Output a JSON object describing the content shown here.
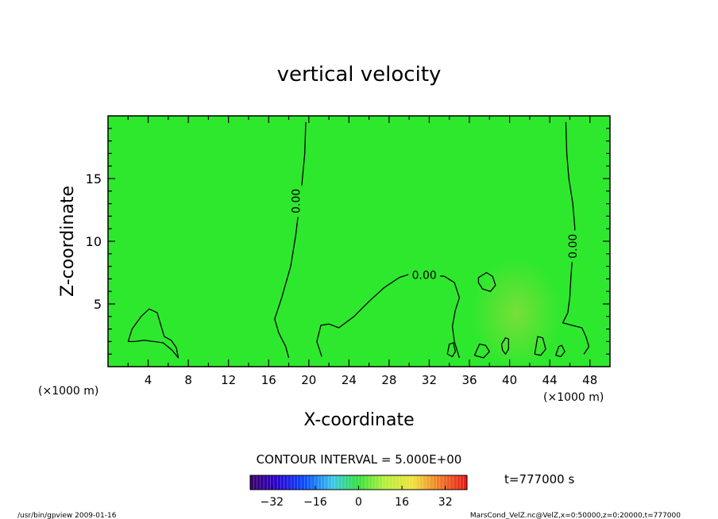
{
  "chart_data": {
    "type": "contour",
    "title": "vertical velocity",
    "xlabel": "X-coordinate",
    "ylabel": "Z-coordinate",
    "x_unit_left": "(×1000 m)",
    "x_unit_right": "(×1000 m)",
    "xlim": [
      0,
      50
    ],
    "ylim": [
      0,
      20
    ],
    "x_ticks": [
      4,
      8,
      12,
      16,
      20,
      24,
      28,
      32,
      36,
      40,
      44,
      48
    ],
    "y_ticks": [
      5,
      10,
      15
    ],
    "contour_interval_text": "CONTOUR INTERVAL = 5.000E+00",
    "contour_label": "0.00",
    "contour_labels": [
      {
        "text": "0.00",
        "x": 18.7,
        "z": 13.2,
        "rotation": -90
      },
      {
        "text": "0.00",
        "x": 31.5,
        "z": 7.3,
        "rotation": 0
      },
      {
        "text": "0.00",
        "x": 46.3,
        "z": 9.6,
        "rotation": -90
      }
    ],
    "contours": [
      {
        "name": "left-zero",
        "points": [
          [
            19.7,
            19.5
          ],
          [
            19.6,
            17
          ],
          [
            19.3,
            14.5
          ],
          [
            19.0,
            12.5
          ],
          [
            18.7,
            10.5
          ],
          [
            18.2,
            8.0
          ],
          [
            17.3,
            5.5
          ],
          [
            16.6,
            3.8
          ],
          [
            17.0,
            2.7
          ],
          [
            17.7,
            1.6
          ],
          [
            18.0,
            0.7
          ]
        ]
      },
      {
        "name": "hump-zero",
        "points": [
          [
            21.3,
            0.8
          ],
          [
            20.8,
            2.0
          ],
          [
            21.2,
            3.3
          ],
          [
            22.0,
            3.4
          ],
          [
            23.0,
            3.1
          ],
          [
            24.5,
            4.0
          ],
          [
            26.0,
            5.2
          ],
          [
            27.5,
            6.3
          ],
          [
            29.0,
            7.1
          ],
          [
            30.5,
            7.5
          ],
          [
            32.0,
            7.3
          ],
          [
            33.5,
            7.2
          ],
          [
            34.5,
            6.7
          ],
          [
            35.0,
            5.5
          ],
          [
            34.6,
            4.5
          ],
          [
            34.3,
            3.2
          ],
          [
            34.5,
            2.0
          ],
          [
            35.0,
            0.7
          ]
        ]
      },
      {
        "name": "right-zero",
        "points": [
          [
            45.6,
            19.5
          ],
          [
            45.7,
            17
          ],
          [
            45.9,
            15
          ],
          [
            46.3,
            13
          ],
          [
            46.5,
            11
          ],
          [
            46.3,
            9.2
          ],
          [
            46.1,
            7.0
          ],
          [
            46.0,
            5.5
          ],
          [
            45.8,
            4.3
          ],
          [
            45.3,
            3.5
          ],
          [
            46.2,
            3.3
          ],
          [
            47.2,
            3.1
          ],
          [
            47.6,
            2.4
          ],
          [
            47.9,
            1.6
          ],
          [
            47.4,
            1.0
          ]
        ]
      },
      {
        "name": "left-lobe",
        "points": [
          [
            2.0,
            2.0
          ],
          [
            2.4,
            3.0
          ],
          [
            3.3,
            4.0
          ],
          [
            4.1,
            4.6
          ],
          [
            4.9,
            4.3
          ],
          [
            5.3,
            3.2
          ],
          [
            5.6,
            2.4
          ],
          [
            6.3,
            2.1
          ],
          [
            6.8,
            1.5
          ],
          [
            7.0,
            0.7
          ],
          [
            6.4,
            1.3
          ],
          [
            5.5,
            1.9
          ],
          [
            4.6,
            2.0
          ],
          [
            3.6,
            2.1
          ],
          [
            2.6,
            2.0
          ],
          [
            2.0,
            2.0
          ]
        ]
      },
      {
        "name": "small-loop",
        "points": [
          [
            36.9,
            7.1
          ],
          [
            37.7,
            7.5
          ],
          [
            38.3,
            7.2
          ],
          [
            38.6,
            6.5
          ],
          [
            38.1,
            6.0
          ],
          [
            37.3,
            6.2
          ],
          [
            36.9,
            6.7
          ],
          [
            36.9,
            7.1
          ]
        ]
      },
      {
        "name": "loop-40",
        "points": [
          [
            39.2,
            1.8
          ],
          [
            39.6,
            2.3
          ],
          [
            39.9,
            2.2
          ],
          [
            39.9,
            1.4
          ],
          [
            39.6,
            1.0
          ],
          [
            39.3,
            1.3
          ],
          [
            39.2,
            1.8
          ]
        ]
      },
      {
        "name": "loop-35",
        "points": [
          [
            33.8,
            1.0
          ],
          [
            34.0,
            1.8
          ],
          [
            34.4,
            1.9
          ],
          [
            34.6,
            1.2
          ],
          [
            34.3,
            0.8
          ],
          [
            33.8,
            1.0
          ]
        ]
      },
      {
        "name": "loop-43",
        "points": [
          [
            42.5,
            1.0
          ],
          [
            42.8,
            2.4
          ],
          [
            43.3,
            2.3
          ],
          [
            43.6,
            1.4
          ],
          [
            43.1,
            0.9
          ],
          [
            42.5,
            1.0
          ]
        ]
      },
      {
        "name": "loop-45",
        "points": [
          [
            44.6,
            0.9
          ],
          [
            44.9,
            1.6
          ],
          [
            45.2,
            1.7
          ],
          [
            45.5,
            1.2
          ],
          [
            45.1,
            0.8
          ],
          [
            44.6,
            0.9
          ]
        ]
      },
      {
        "name": "loop-38",
        "points": [
          [
            36.5,
            0.9
          ],
          [
            37.0,
            1.8
          ],
          [
            37.6,
            1.7
          ],
          [
            38.0,
            1.2
          ],
          [
            37.4,
            0.7
          ],
          [
            36.5,
            0.9
          ]
        ]
      }
    ],
    "colorbar": {
      "ticks": [
        -32,
        -16,
        0,
        16,
        32
      ],
      "range": [
        -40,
        40
      ],
      "tick_labels": [
        "−32",
        "−16",
        "0",
        "16",
        "32"
      ]
    },
    "time_label": "t=777000 s",
    "field_color": "#2ee82e",
    "contour_color": "#000000"
  },
  "footer": {
    "left": "/usr/bin/gpview   2009-01-16",
    "right": "MarsCond_VelZ.nc@VelZ,x=0:50000,z=0:20000,t=777000"
  }
}
